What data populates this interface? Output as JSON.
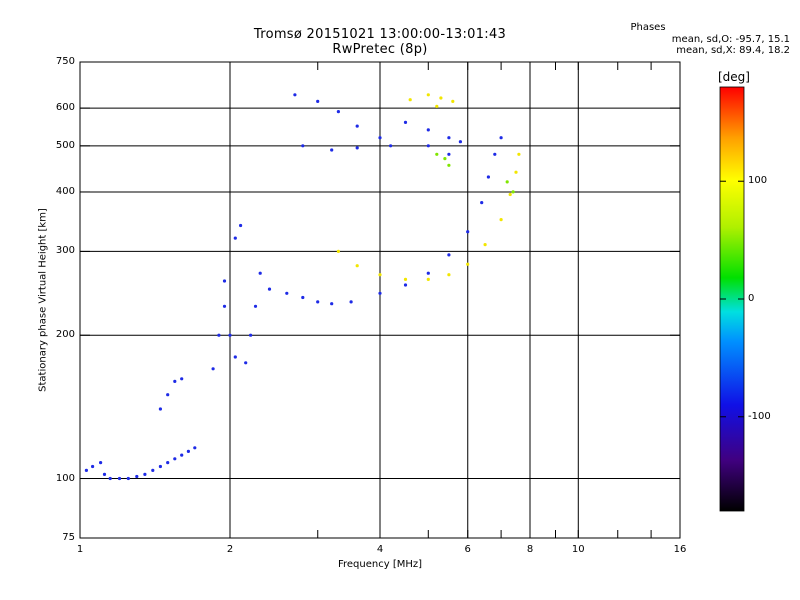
{
  "header": {
    "title_line1": "Tromsø 20151021 13:00:00-13:01:43",
    "title_line2": "RwPretec (8p)"
  },
  "stats": {
    "heading": "Phases",
    "o_line": "mean, sd,O: -95.7, 15.1",
    "x_line": "mean, sd,X: 89.4, 18.2"
  },
  "colorbar": {
    "unit": "[deg]",
    "ticks": [
      "100",
      "0",
      "-100"
    ],
    "tick_values": [
      100,
      0,
      -100
    ],
    "range": [
      -180,
      180
    ]
  },
  "chart_data": {
    "type": "scatter",
    "xlabel": "Frequency [MHz]",
    "ylabel": "Stationary phase Virtual Height [km]",
    "x_scale": "log",
    "y_scale": "log",
    "xlim": [
      1,
      16
    ],
    "ylim": [
      75,
      750
    ],
    "x_ticks": [
      1,
      2,
      4,
      6,
      8,
      10,
      16
    ],
    "x_tick_labels": [
      "1",
      "2",
      "4",
      "6",
      "8",
      "10",
      "16"
    ],
    "x_minor_ticks": [
      3,
      5,
      7,
      9,
      12,
      14
    ],
    "y_ticks": [
      75,
      100,
      200,
      300,
      400,
      500,
      600,
      750
    ],
    "y_tick_labels": [
      "75",
      "100",
      "200",
      "300",
      "400",
      "500",
      "600",
      "750"
    ],
    "grid_major_x": [
      2,
      4,
      6,
      8,
      10
    ],
    "grid_major_y": [
      100,
      200,
      300,
      400,
      500,
      600
    ],
    "color_scale": "rainbow phase (deg)",
    "series": [
      {
        "color": "#1e2be6",
        "phase_mean": -95.7,
        "points": [
          [
            1.03,
            104
          ],
          [
            1.06,
            106
          ],
          [
            1.1,
            108
          ],
          [
            1.12,
            102
          ],
          [
            1.15,
            100
          ],
          [
            1.2,
            100
          ],
          [
            1.25,
            100
          ],
          [
            1.3,
            101
          ],
          [
            1.35,
            102
          ],
          [
            1.4,
            104
          ],
          [
            1.45,
            106
          ],
          [
            1.5,
            108
          ],
          [
            1.55,
            110
          ],
          [
            1.6,
            112
          ],
          [
            1.65,
            114
          ],
          [
            1.7,
            116
          ],
          [
            1.45,
            140
          ],
          [
            1.5,
            150
          ],
          [
            1.55,
            160
          ],
          [
            1.6,
            162
          ],
          [
            1.85,
            170
          ],
          [
            1.9,
            200
          ],
          [
            1.95,
            230
          ],
          [
            2.0,
            200
          ],
          [
            2.05,
            180
          ],
          [
            2.15,
            175
          ],
          [
            2.2,
            200
          ],
          [
            2.25,
            230
          ],
          [
            2.3,
            270
          ],
          [
            2.4,
            250
          ],
          [
            2.6,
            245
          ],
          [
            2.8,
            240
          ],
          [
            3.0,
            235
          ],
          [
            3.2,
            233
          ],
          [
            3.5,
            235
          ],
          [
            4.0,
            245
          ],
          [
            4.5,
            255
          ],
          [
            5.0,
            270
          ],
          [
            5.5,
            295
          ],
          [
            6.0,
            330
          ],
          [
            6.4,
            380
          ],
          [
            6.6,
            430
          ],
          [
            6.8,
            480
          ],
          [
            7.0,
            520
          ],
          [
            2.7,
            640
          ],
          [
            3.0,
            620
          ],
          [
            3.3,
            590
          ],
          [
            3.6,
            550
          ],
          [
            4.0,
            520
          ],
          [
            2.8,
            500
          ],
          [
            3.2,
            490
          ],
          [
            3.6,
            495
          ],
          [
            4.2,
            500
          ],
          [
            5.0,
            500
          ],
          [
            5.5,
            480
          ],
          [
            4.5,
            560
          ],
          [
            5.0,
            540
          ],
          [
            5.5,
            520
          ],
          [
            5.8,
            510
          ],
          [
            2.1,
            340
          ],
          [
            2.05,
            320
          ],
          [
            1.95,
            260
          ]
        ]
      },
      {
        "color": "#f2e600",
        "phase_mean": 89.4,
        "points": [
          [
            3.3,
            300
          ],
          [
            3.6,
            280
          ],
          [
            4.0,
            268
          ],
          [
            4.5,
            262
          ],
          [
            5.0,
            262
          ],
          [
            5.5,
            268
          ],
          [
            6.0,
            282
          ],
          [
            6.5,
            310
          ],
          [
            7.0,
            350
          ],
          [
            7.3,
            395
          ],
          [
            7.5,
            440
          ],
          [
            7.6,
            480
          ],
          [
            4.6,
            625
          ],
          [
            5.0,
            640
          ],
          [
            5.3,
            630
          ],
          [
            5.6,
            620
          ],
          [
            5.2,
            605
          ]
        ]
      },
      {
        "color": "#80e600",
        "phase_mean": 60,
        "points": [
          [
            5.4,
            470
          ],
          [
            5.5,
            455
          ],
          [
            5.2,
            480
          ],
          [
            7.2,
            420
          ],
          [
            7.4,
            400
          ]
        ]
      }
    ]
  }
}
